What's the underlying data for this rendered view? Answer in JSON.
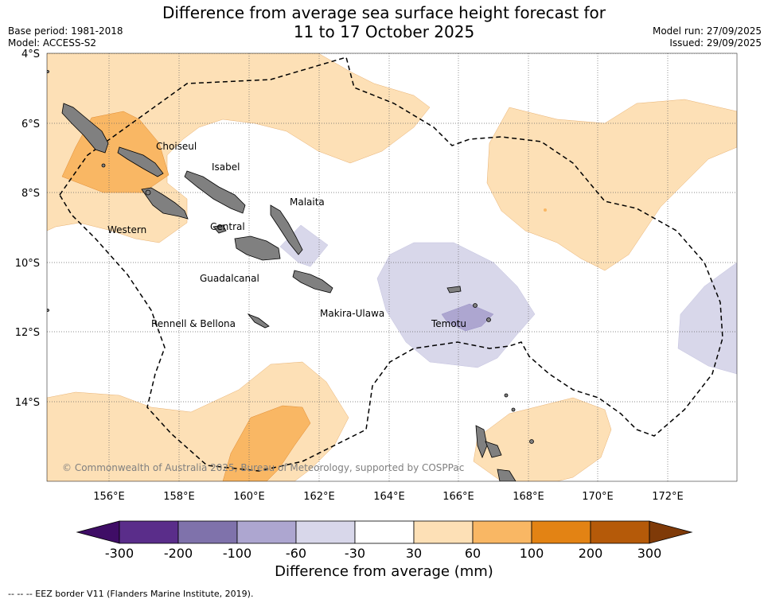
{
  "title_line1": "Difference from average sea surface height forecast for",
  "title_line2": "11 to 17 October 2025",
  "base_period": "Base period: 1981-2018",
  "model": "Model: ACCESS-S2",
  "model_run": "Model run: 27/09/2025",
  "issued": "Issued: 29/09/2025",
  "lat_labels": [
    "4°S",
    "6°S",
    "8°S",
    "10°S",
    "12°S",
    "14°S"
  ],
  "lon_labels": [
    "156°E",
    "158°E",
    "160°E",
    "162°E",
    "164°E",
    "166°E",
    "168°E",
    "170°E",
    "172°E"
  ],
  "places": {
    "choiseul": "Choiseul",
    "isabel": "Isabel",
    "malaita": "Malaita",
    "central": "Central",
    "western": "Western",
    "guadalcanal": "Guadalcanal",
    "makira": "Makira-Ulawa",
    "temotu": "Temotu",
    "rennell": "Rennell & Bellona"
  },
  "copyright": "© Commonwealth of Australia 2025, Bureau of Meteorology, supported by COSPPac",
  "colorbar": {
    "title": "Difference from average (mm)",
    "ticks": [
      "-300",
      "-200",
      "-100",
      "-60",
      "-30",
      "30",
      "60",
      "100",
      "200",
      "300"
    ],
    "colors": [
      "#3f0d66",
      "#5a2d8a",
      "#7f72ab",
      "#ada6d0",
      "#d8d7ea",
      "#ffffff",
      "#fde0b6",
      "#f9b764",
      "#e38314",
      "#b55a09",
      "#7f3a08"
    ]
  },
  "footnote": "--  --  -- EEZ border V11 (Flanders Marine Institute, 2019).",
  "map_colors": {
    "land": "#808080",
    "light_orange": "#fde0b6",
    "orange": "#f9b764",
    "light_purple": "#d8d7ea",
    "purple": "#ada6d0"
  }
}
